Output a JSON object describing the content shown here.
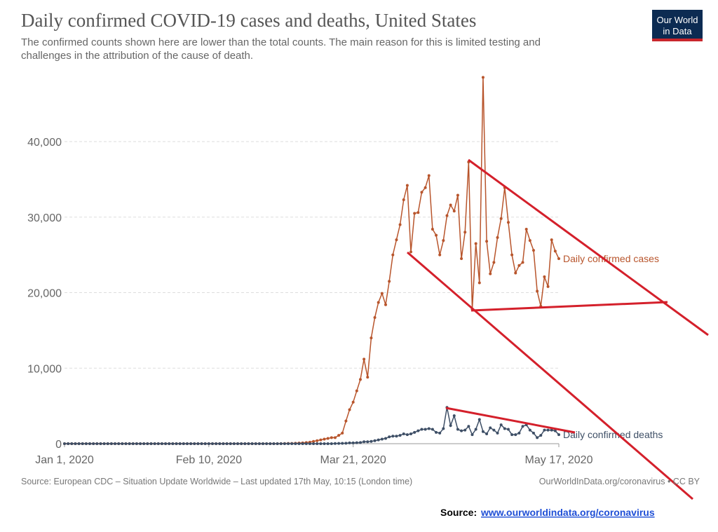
{
  "chart_data": {
    "type": "line",
    "title": "Daily confirmed COVID-19 cases and deaths, United States",
    "subtitle": [
      "The confirmed counts shown here are lower than the total counts. The main reason for this is limited testing and",
      "challenges in the attribution of the cause of death."
    ],
    "logo": [
      "Our World",
      "in Data"
    ],
    "source": "Source: European CDC – Situation Update Worldwide – Last updated 17th May, 10:15 (London time)",
    "license": "OurWorldInData.org/coronavirus • CC BY",
    "footnote": {
      "label": "Source:",
      "link": "www.ourworldindata.org/coronavirus"
    },
    "x": [
      "2020-01-01",
      "2020-01-02",
      "2020-01-03",
      "2020-01-04",
      "2020-01-05",
      "2020-01-06",
      "2020-01-07",
      "2020-01-08",
      "2020-01-09",
      "2020-01-10",
      "2020-01-11",
      "2020-01-12",
      "2020-01-13",
      "2020-01-14",
      "2020-01-15",
      "2020-01-16",
      "2020-01-17",
      "2020-01-18",
      "2020-01-19",
      "2020-01-20",
      "2020-01-21",
      "2020-01-22",
      "2020-01-23",
      "2020-01-24",
      "2020-01-25",
      "2020-01-26",
      "2020-01-27",
      "2020-01-28",
      "2020-01-29",
      "2020-01-30",
      "2020-01-31",
      "2020-02-01",
      "2020-02-02",
      "2020-02-03",
      "2020-02-04",
      "2020-02-05",
      "2020-02-06",
      "2020-02-07",
      "2020-02-08",
      "2020-02-09",
      "2020-02-10",
      "2020-02-11",
      "2020-02-12",
      "2020-02-13",
      "2020-02-14",
      "2020-02-15",
      "2020-02-16",
      "2020-02-17",
      "2020-02-18",
      "2020-02-19",
      "2020-02-20",
      "2020-02-21",
      "2020-02-22",
      "2020-02-23",
      "2020-02-24",
      "2020-02-25",
      "2020-02-26",
      "2020-02-27",
      "2020-02-28",
      "2020-02-29",
      "2020-03-01",
      "2020-03-02",
      "2020-03-03",
      "2020-03-04",
      "2020-03-05",
      "2020-03-06",
      "2020-03-07",
      "2020-03-08",
      "2020-03-09",
      "2020-03-10",
      "2020-03-11",
      "2020-03-12",
      "2020-03-13",
      "2020-03-14",
      "2020-03-15",
      "2020-03-16",
      "2020-03-17",
      "2020-03-18",
      "2020-03-19",
      "2020-03-20",
      "2020-03-21",
      "2020-03-22",
      "2020-03-23",
      "2020-03-24",
      "2020-03-25",
      "2020-03-26",
      "2020-03-27",
      "2020-03-28",
      "2020-03-29",
      "2020-03-30",
      "2020-03-31",
      "2020-04-01",
      "2020-04-02",
      "2020-04-03",
      "2020-04-04",
      "2020-04-05",
      "2020-04-06",
      "2020-04-07",
      "2020-04-08",
      "2020-04-09",
      "2020-04-10",
      "2020-04-11",
      "2020-04-12",
      "2020-04-13",
      "2020-04-14",
      "2020-04-15",
      "2020-04-16",
      "2020-04-17",
      "2020-04-18",
      "2020-04-19",
      "2020-04-20",
      "2020-04-21",
      "2020-04-22",
      "2020-04-23",
      "2020-04-24",
      "2020-04-25",
      "2020-04-26",
      "2020-04-27",
      "2020-04-28",
      "2020-04-29",
      "2020-04-30",
      "2020-05-01",
      "2020-05-02",
      "2020-05-03",
      "2020-05-04",
      "2020-05-05",
      "2020-05-06",
      "2020-05-07",
      "2020-05-08",
      "2020-05-09",
      "2020-05-10",
      "2020-05-11",
      "2020-05-12",
      "2020-05-13",
      "2020-05-14",
      "2020-05-15",
      "2020-05-16",
      "2020-05-17"
    ],
    "series": [
      {
        "name": "Daily confirmed cases",
        "color": "#b8552c",
        "values": [
          0,
          0,
          0,
          0,
          0,
          0,
          0,
          0,
          0,
          0,
          0,
          0,
          0,
          0,
          0,
          0,
          0,
          0,
          0,
          0,
          0,
          0,
          0,
          0,
          0,
          0,
          0,
          0,
          0,
          0,
          0,
          0,
          0,
          0,
          0,
          0,
          0,
          0,
          0,
          0,
          0,
          0,
          0,
          0,
          0,
          0,
          0,
          0,
          0,
          0,
          0,
          0,
          0,
          0,
          0,
          0,
          0,
          0,
          0,
          0,
          10,
          20,
          30,
          40,
          60,
          80,
          100,
          150,
          200,
          300,
          400,
          500,
          600,
          700,
          800,
          800,
          1100,
          1400,
          3000,
          4500,
          5500,
          7000,
          8500,
          11200,
          8800,
          14000,
          16700,
          18700,
          19900,
          18400,
          21500,
          25000,
          27000,
          29000,
          32300,
          34200,
          25400,
          30500,
          30600,
          33300,
          33900,
          35500,
          28400,
          27600,
          25000,
          26900,
          30200,
          31600,
          30800,
          32900,
          24500,
          28000,
          37300,
          17800,
          26500,
          21300,
          48500,
          26800,
          22500,
          24000,
          27300,
          29800,
          33900,
          29300,
          25000,
          22600,
          23600,
          24000,
          28400,
          26900,
          25600,
          20200,
          18200,
          22100,
          20800,
          27000,
          25500,
          24500
        ]
      },
      {
        "name": "Daily confirmed deaths",
        "color": "#3e4f66",
        "values": [
          0,
          0,
          0,
          0,
          0,
          0,
          0,
          0,
          0,
          0,
          0,
          0,
          0,
          0,
          0,
          0,
          0,
          0,
          0,
          0,
          0,
          0,
          0,
          0,
          0,
          0,
          0,
          0,
          0,
          0,
          0,
          0,
          0,
          0,
          0,
          0,
          0,
          0,
          0,
          0,
          0,
          0,
          0,
          0,
          0,
          0,
          0,
          0,
          0,
          0,
          0,
          0,
          0,
          0,
          0,
          0,
          0,
          0,
          0,
          0,
          0,
          0,
          0,
          0,
          0,
          0,
          0,
          0,
          0,
          0,
          0,
          0,
          0,
          0,
          0,
          20,
          30,
          50,
          60,
          100,
          100,
          130,
          150,
          250,
          250,
          300,
          400,
          500,
          600,
          700,
          900,
          1000,
          1000,
          1100,
          1300,
          1200,
          1300,
          1500,
          1700,
          1900,
          1900,
          2000,
          1900,
          1500,
          1400,
          2000,
          4800,
          2400,
          3700,
          1900,
          1700,
          1800,
          2300,
          1200,
          1900,
          3200,
          1600,
          1300,
          2100,
          1800,
          1400,
          2500,
          2000,
          1900,
          1200,
          1200,
          1400,
          2300,
          2500,
          1800,
          1400,
          800,
          1100,
          1800,
          1800,
          1800,
          1700,
          1200
        ]
      }
    ],
    "xlim": [
      "2020-01-01",
      "2020-05-17"
    ],
    "xticks": [
      {
        "value": "2020-01-01",
        "label": "Jan 1, 2020"
      },
      {
        "value": "2020-02-10",
        "label": "Feb 10, 2020"
      },
      {
        "value": "2020-03-21",
        "label": "Mar 21, 2020"
      },
      {
        "value": "2020-05-17",
        "label": "May 17, 2020"
      }
    ],
    "ylim": [
      0,
      40000
    ],
    "yticks": [
      0,
      {
        "value": 10000,
        "label": "10,000"
      },
      {
        "value": 20000,
        "label": "20,000"
      },
      {
        "value": 30000,
        "label": "30,000"
      },
      {
        "value": 40000,
        "label": "40,000"
      }
    ],
    "grid": true
  }
}
